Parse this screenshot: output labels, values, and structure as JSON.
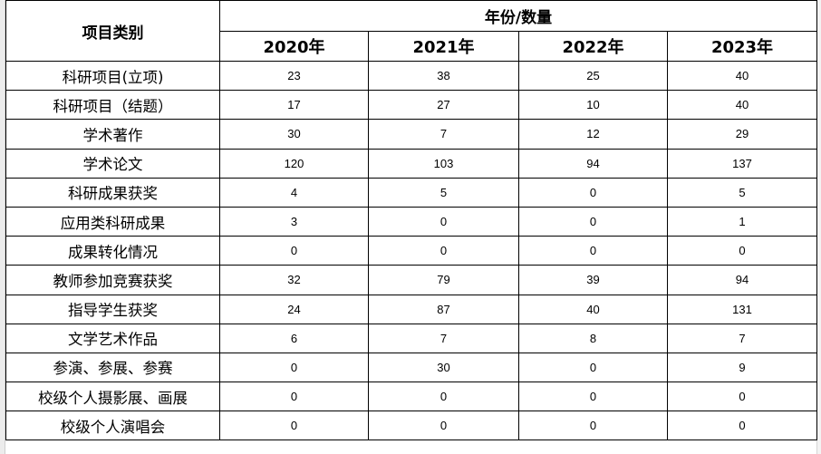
{
  "table": {
    "category_header": "项目类别",
    "group_header": "年份/数量",
    "years": [
      "2020年",
      "2021年",
      "2022年",
      "2023年"
    ],
    "rows": [
      {
        "label": "科研项目(立项)",
        "values": [
          "23",
          "38",
          "25",
          "40"
        ]
      },
      {
        "label": "科研项目（结题）",
        "values": [
          "17",
          "27",
          "10",
          "40"
        ]
      },
      {
        "label": "学术著作",
        "values": [
          "30",
          "7",
          "12",
          "29"
        ]
      },
      {
        "label": "学术论文",
        "values": [
          "120",
          "103",
          "94",
          "137"
        ]
      },
      {
        "label": "科研成果获奖",
        "values": [
          "4",
          "5",
          "0",
          "5"
        ]
      },
      {
        "label": "应用类科研成果",
        "values": [
          "3",
          "0",
          "0",
          "1"
        ]
      },
      {
        "label": "成果转化情况",
        "values": [
          "0",
          "0",
          "0",
          "0"
        ]
      },
      {
        "label": "教师参加竞赛获奖",
        "values": [
          "32",
          "79",
          "39",
          "94"
        ]
      },
      {
        "label": "指导学生获奖",
        "values": [
          "24",
          "87",
          "40",
          "131"
        ]
      },
      {
        "label": "文学艺术作品",
        "values": [
          "6",
          "7",
          "8",
          "7"
        ]
      },
      {
        "label": "参演、参展、参赛",
        "values": [
          "0",
          "30",
          "0",
          "9"
        ]
      },
      {
        "label": "校级个人摄影展、画展",
        "values": [
          "0",
          "0",
          "0",
          "0"
        ]
      },
      {
        "label": "校级个人演唱会",
        "values": [
          "0",
          "0",
          "0",
          "0"
        ]
      }
    ]
  }
}
